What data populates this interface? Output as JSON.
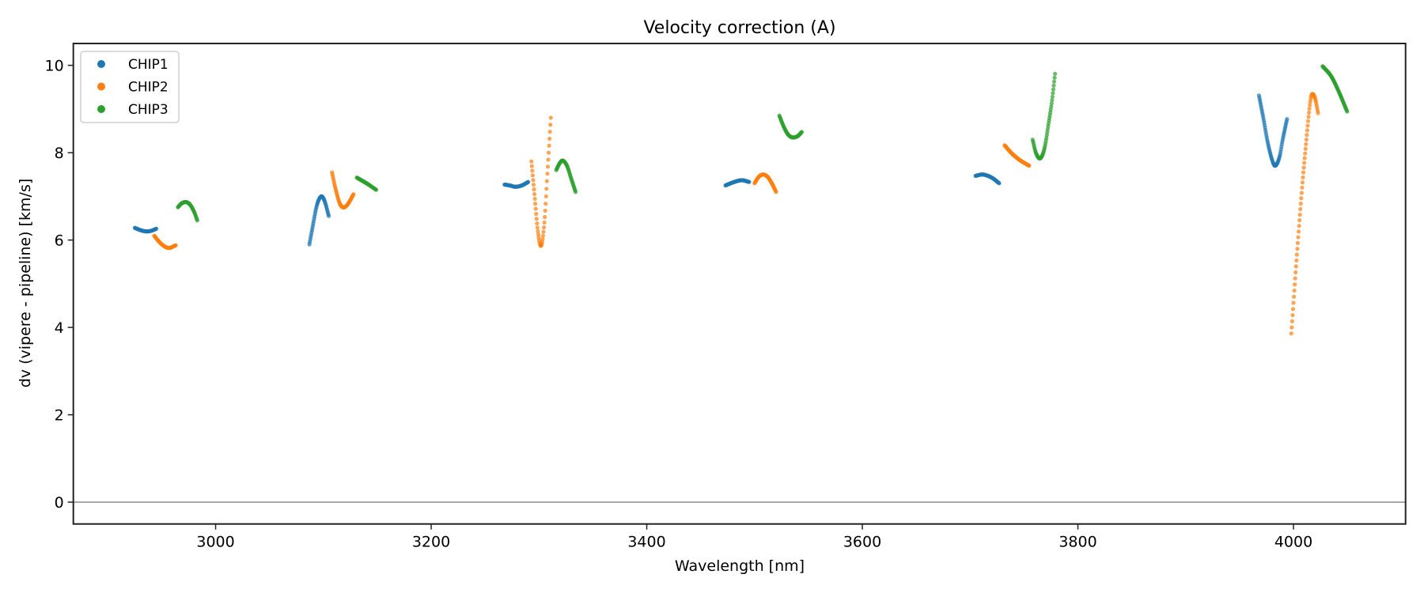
{
  "chart_data": {
    "type": "scatter",
    "title": "Velocity correction (A)",
    "xlabel": "Wavelength [nm]",
    "ylabel": "dv (vipere - pipeline) [km/s]",
    "xlim": [
      2868,
      4104
    ],
    "ylim": [
      -0.5,
      10.5
    ],
    "xticks": [
      3000,
      3200,
      3400,
      3600,
      3800,
      4000
    ],
    "yticks": [
      0,
      2,
      4,
      6,
      8,
      10
    ],
    "reference_line_y": 0,
    "grid": false,
    "legend_position": "top-left",
    "sampling_step_nm": 0.4,
    "series": [
      {
        "name": "CHIP1",
        "color": "#1f77b4",
        "segments": [
          {
            "x": [
              2925,
              2930,
              2935,
              2940,
              2945
            ],
            "y": [
              6.28,
              6.23,
              6.2,
              6.21,
              6.26
            ]
          },
          {
            "x": [
              3087,
              3090,
              3094,
              3098,
              3101,
              3105
            ],
            "y": [
              5.9,
              6.3,
              6.8,
              7.0,
              6.9,
              6.55
            ]
          },
          {
            "x": [
              3268,
              3273,
              3278,
              3284,
              3290
            ],
            "y": [
              7.27,
              7.25,
              7.22,
              7.25,
              7.33
            ]
          },
          {
            "x": [
              3473,
              3480,
              3488,
              3495
            ],
            "y": [
              7.25,
              7.32,
              7.37,
              7.33
            ]
          },
          {
            "x": [
              3705,
              3712,
              3720,
              3727
            ],
            "y": [
              7.47,
              7.5,
              7.43,
              7.3
            ]
          },
          {
            "x": [
              3968,
              3972,
              3976,
              3980,
              3983,
              3987,
              3990,
              3994
            ],
            "y": [
              9.31,
              8.8,
              8.25,
              7.85,
              7.7,
              7.9,
              8.3,
              8.77
            ]
          }
        ]
      },
      {
        "name": "CHIP2",
        "color": "#ff7f0e",
        "segments": [
          {
            "x": [
              2943,
              2948,
              2953,
              2957,
              2963
            ],
            "y": [
              6.1,
              5.95,
              5.85,
              5.82,
              5.88
            ]
          },
          {
            "x": [
              3108,
              3111,
              3115,
              3118,
              3122,
              3128
            ],
            "y": [
              7.55,
              7.2,
              6.85,
              6.75,
              6.8,
              7.05
            ]
          },
          {
            "x": [
              3293,
              3296,
              3299,
              3302,
              3305,
              3308,
              3311
            ],
            "y": [
              7.8,
              7.0,
              6.2,
              5.87,
              6.4,
              7.6,
              8.8
            ]
          },
          {
            "x": [
              3500,
              3504,
              3508,
              3512,
              3516,
              3520
            ],
            "y": [
              7.3,
              7.45,
              7.5,
              7.45,
              7.3,
              7.1
            ]
          },
          {
            "x": [
              3732,
              3738,
              3744,
              3750,
              3755
            ],
            "y": [
              8.17,
              8.0,
              7.87,
              7.77,
              7.7
            ]
          },
          {
            "x": [
              3998,
              4003,
              4008,
              4012,
              4015,
              4017,
              4020,
              4023
            ],
            "y": [
              3.86,
              5.6,
              7.2,
              8.3,
              9.05,
              9.33,
              9.25,
              8.88
            ]
          }
        ]
      },
      {
        "name": "CHIP3",
        "color": "#2ca02c",
        "segments": [
          {
            "x": [
              2965,
              2968,
              2972,
              2976,
              2980,
              2983
            ],
            "y": [
              6.75,
              6.83,
              6.87,
              6.82,
              6.65,
              6.45
            ]
          },
          {
            "x": [
              3131,
              3140,
              3149
            ],
            "y": [
              7.43,
              7.3,
              7.15
            ]
          },
          {
            "x": [
              3316,
              3319,
              3322,
              3326,
              3330,
              3334
            ],
            "y": [
              7.6,
              7.75,
              7.82,
              7.7,
              7.4,
              7.1
            ]
          },
          {
            "x": [
              3523,
              3527,
              3531,
              3535,
              3540,
              3544
            ],
            "y": [
              8.85,
              8.6,
              8.42,
              8.35,
              8.38,
              8.48
            ]
          },
          {
            "x": [
              3758,
              3761,
              3765,
              3769,
              3773,
              3776,
              3779
            ],
            "y": [
              8.3,
              8.0,
              7.87,
              8.1,
              8.7,
              9.2,
              9.85
            ]
          },
          {
            "x": [
              4027,
              4035,
              4042,
              4050
            ],
            "y": [
              9.98,
              9.75,
              9.4,
              8.93
            ]
          }
        ]
      }
    ]
  }
}
